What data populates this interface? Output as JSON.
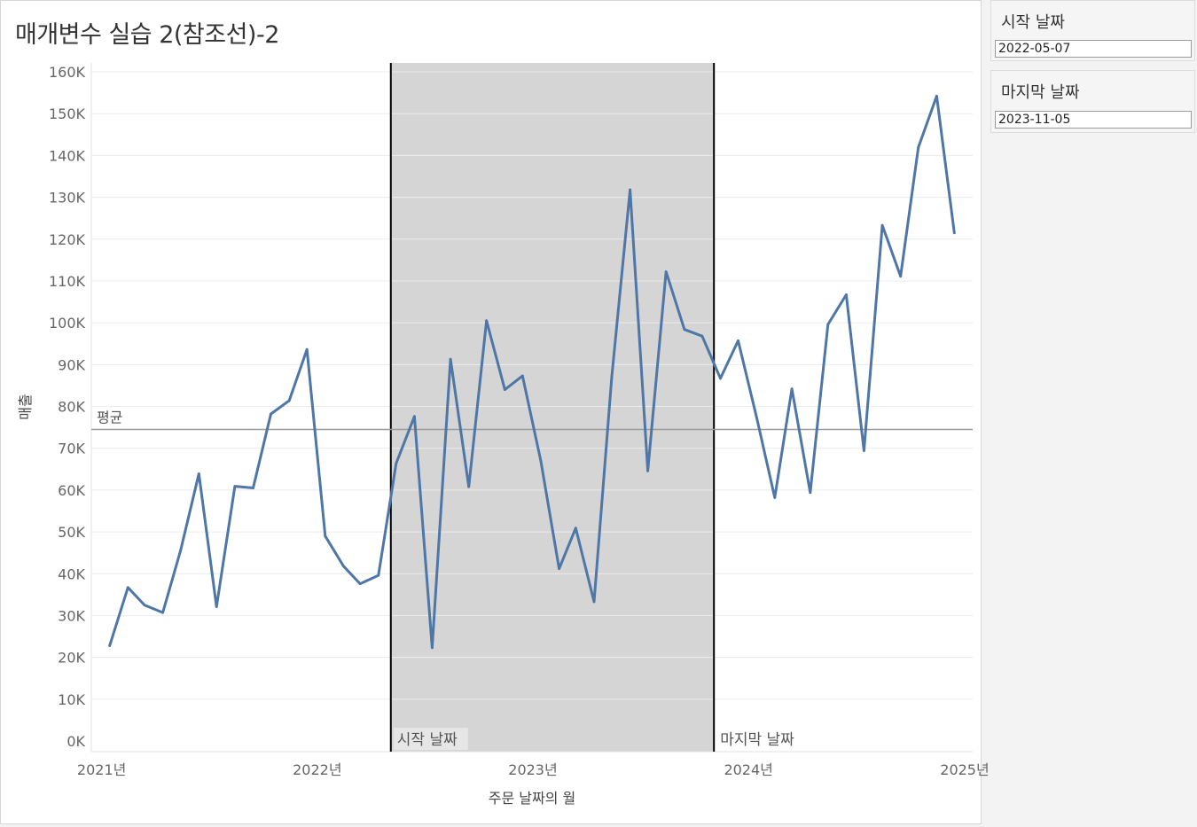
{
  "sheet_title": "매개변수 실습 2(참조선)-2",
  "parameters": {
    "start": {
      "label": "시작 날짜",
      "value": "2022-05-07"
    },
    "end": {
      "label": "마지막 날짜",
      "value": "2023-11-05"
    }
  },
  "colors": {
    "line": "#4e76a6",
    "band": "#d5d5d5",
    "average_line": "#9a9a9a",
    "reference_line": "#000000",
    "grid": "#ececec",
    "axis_text": "#666666"
  },
  "chart_data": {
    "type": "line",
    "xlabel": "주문 날짜의 월",
    "ylabel": "매출",
    "x_ticks": [
      "2021년",
      "2022년",
      "2023년",
      "2024년",
      "2025년"
    ],
    "y_ticks": [
      "0K",
      "10K",
      "20K",
      "30K",
      "40K",
      "50K",
      "60K",
      "70K",
      "80K",
      "90K",
      "100K",
      "110K",
      "120K",
      "130K",
      "140K",
      "150K",
      "160K"
    ],
    "ylim": [
      0,
      160000
    ],
    "xlim": [
      "2020-12-16",
      "2025-01-16"
    ],
    "grid": true,
    "reference_band": {
      "start": "2022-05-07",
      "end": "2023-11-05",
      "start_label": "시작 날짜",
      "end_label": "마지막 날짜"
    },
    "average_line": {
      "label": "평균",
      "value": 74500
    },
    "series": [
      {
        "x": [
          "2021-01",
          "2021-02",
          "2021-03",
          "2021-04",
          "2021-05",
          "2021-06",
          "2021-07",
          "2021-08",
          "2021-09",
          "2021-10",
          "2021-11",
          "2021-12",
          "2022-01",
          "2022-02",
          "2022-03",
          "2022-04",
          "2022-05",
          "2022-06",
          "2022-07",
          "2022-08",
          "2022-09",
          "2022-10",
          "2022-11",
          "2022-12",
          "2023-01",
          "2023-02",
          "2023-03",
          "2023-04",
          "2023-05",
          "2023-06",
          "2023-07",
          "2023-08",
          "2023-09",
          "2023-10",
          "2023-11",
          "2023-12",
          "2024-01",
          "2024-02",
          "2024-03",
          "2024-04",
          "2024-05",
          "2024-06",
          "2024-07",
          "2024-08",
          "2024-09",
          "2024-10",
          "2024-11",
          "2024-12"
        ],
        "values": [
          22800,
          36700,
          32500,
          30700,
          45500,
          63900,
          32100,
          60900,
          60500,
          78200,
          81400,
          93600,
          49000,
          41800,
          37600,
          39600,
          66400,
          77600,
          22300,
          91300,
          60800,
          100500,
          84000,
          87300,
          66900,
          41200,
          50900,
          33300,
          86900,
          131800,
          64600,
          112200,
          98400,
          96800,
          86700,
          95700,
          77500,
          58200,
          84200,
          59400,
          99600,
          106700,
          69400,
          123300,
          111100,
          141900,
          154200,
          121500
        ]
      }
    ]
  }
}
